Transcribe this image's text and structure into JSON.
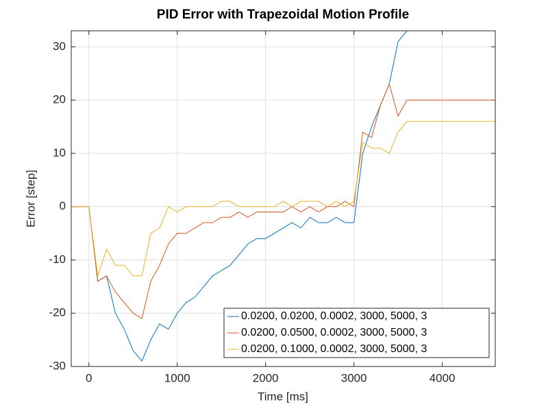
{
  "chart_data": {
    "type": "line",
    "title": "PID Error with Trapezoidal Motion Profile",
    "x_label": "Time [ms]",
    "y_label": "Error [step]",
    "x": [
      -200,
      -100,
      0,
      100,
      200,
      300,
      400,
      500,
      600,
      700,
      800,
      900,
      1000,
      1100,
      1200,
      1300,
      1400,
      1500,
      1600,
      1700,
      1800,
      1900,
      2000,
      2100,
      2200,
      2300,
      2400,
      2500,
      2600,
      2700,
      2800,
      2900,
      3000,
      3100,
      3200,
      3300,
      3400,
      3500,
      3600,
      3700,
      3800,
      3900,
      4000,
      4100,
      4200,
      4300,
      4400,
      4500,
      4600
    ],
    "series": [
      {
        "name": "0.0200, 0.0200, 0.0002, 3000, 5000, 3",
        "color": "#0072BD",
        "values": [
          0,
          0,
          0,
          -14,
          -13,
          -20,
          -23,
          -27,
          -29,
          -25,
          -22,
          -23,
          -20,
          -18,
          -17,
          -15,
          -13,
          -12,
          -11,
          -9,
          -7,
          -6,
          -6,
          -5,
          -4,
          -3,
          -4,
          -2,
          -3,
          -3,
          -2,
          -3,
          -3,
          10,
          15,
          19,
          23,
          31,
          33,
          33,
          33,
          33,
          33,
          33,
          33,
          33,
          33,
          33,
          33
        ]
      },
      {
        "name": "0.0200, 0.0500, 0.0002, 3000, 5000, 3",
        "color": "#D95319",
        "values": [
          0,
          0,
          0,
          -14,
          -13,
          -16,
          -18,
          -20,
          -21,
          -14,
          -11,
          -7,
          -5,
          -5,
          -4,
          -3,
          -3,
          -2,
          -2,
          -1,
          -2,
          -1,
          -1,
          -1,
          -1,
          0,
          -1,
          0,
          -1,
          0,
          0,
          1,
          0,
          14,
          13,
          19,
          23,
          17,
          20,
          20,
          20,
          20,
          20,
          20,
          20,
          20,
          20,
          20,
          20
        ]
      },
      {
        "name": "0.0200, 0.1000, 0.0002, 3000, 5000, 3",
        "color": "#EDB120",
        "values": [
          0,
          0,
          0,
          -13,
          -8,
          -11,
          -11,
          -13,
          -13,
          -5,
          -4,
          0,
          -1,
          0,
          0,
          0,
          0,
          1,
          1,
          0,
          0,
          0,
          0,
          0,
          1,
          0,
          1,
          1,
          1,
          0,
          1,
          0,
          1,
          12,
          11,
          11,
          10,
          14,
          16,
          16,
          16,
          16,
          16,
          16,
          16,
          16,
          16,
          16,
          16
        ]
      }
    ],
    "xlim": [
      -200,
      4600
    ],
    "ylim": [
      -30,
      33
    ],
    "xticks": [
      0,
      1000,
      2000,
      3000,
      4000
    ],
    "yticks": [
      -30,
      -20,
      -10,
      0,
      10,
      20,
      30
    ],
    "grid": true,
    "legend": "lower-right"
  }
}
